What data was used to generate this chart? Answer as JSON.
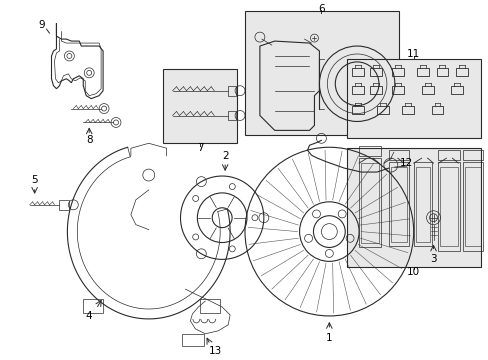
{
  "background_color": "#ffffff",
  "line_color": "#2a2a2a",
  "fig_width": 4.89,
  "fig_height": 3.6,
  "dpi": 100,
  "label_fontsize": 7.5
}
